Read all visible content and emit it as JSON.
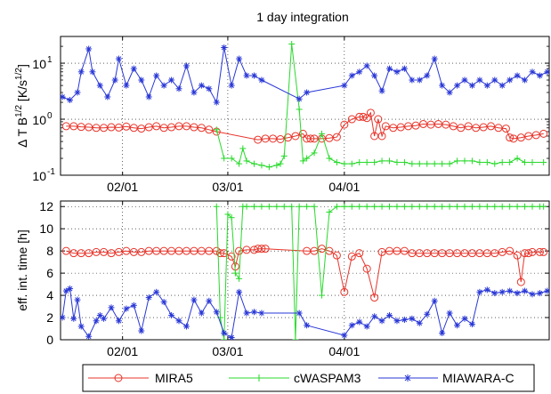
{
  "title": "1 day integration",
  "colors": {
    "mira": "#e8342a",
    "cwaspam": "#28d92b",
    "miawara": "#2937d6"
  },
  "legend": [
    "MIRA5",
    "cWASPAM3",
    "MIAWARA-C"
  ],
  "chart_data": [
    {
      "type": "line",
      "ylabel": "Δ T B^1/2 [K/s^1/2]",
      "yscale": "log",
      "ylim": [
        0.1,
        30
      ],
      "yticks": [
        "10^-1",
        "10^0",
        "10^1"
      ],
      "xticks": [
        "02/01",
        "03/01",
        "04/01"
      ],
      "xlim_days_from_jan1": [
        14.5,
        114.5
      ],
      "grid": true,
      "series": [
        {
          "name": "MIRA5",
          "x": [
            16,
            18,
            20,
            22,
            24,
            26,
            28,
            30,
            32,
            34,
            36,
            38,
            40,
            42,
            44,
            46,
            48,
            50,
            52,
            54,
            56,
            67,
            69,
            71,
            73,
            75,
            77,
            79,
            80,
            81,
            82,
            84,
            86,
            88,
            90,
            92,
            94,
            95,
            96,
            97,
            98,
            99,
            100,
            101,
            103,
            105,
            107,
            109,
            111,
            113,
            115,
            117,
            119,
            121,
            123,
            125,
            127,
            129,
            131,
            133,
            134,
            135,
            137,
            139,
            141,
            143
          ],
          "y": [
            0.75,
            0.75,
            0.73,
            0.72,
            0.7,
            0.7,
            0.72,
            0.71,
            0.74,
            0.7,
            0.68,
            0.72,
            0.75,
            0.7,
            0.72,
            0.75,
            0.75,
            0.72,
            0.7,
            0.65,
            0.6,
            0.43,
            0.45,
            0.45,
            0.44,
            0.47,
            0.5,
            0.55,
            0.45,
            0.45,
            0.45,
            0.45,
            0.46,
            0.48,
            0.8,
            1.0,
            1.1,
            1.1,
            1.05,
            1.3,
            0.5,
            1.0,
            0.5,
            0.75,
            0.7,
            0.72,
            0.75,
            0.77,
            0.82,
            0.8,
            0.82,
            0.8,
            0.75,
            0.7,
            0.75,
            0.7,
            0.72,
            0.75,
            0.7,
            0.68,
            0.47,
            0.45,
            0.47,
            0.5,
            0.52,
            0.55
          ]
        },
        {
          "name": "cWASPAM3",
          "x": [
            56,
            58,
            60,
            62,
            63,
            64,
            66,
            68,
            70,
            72,
            73,
            74,
            76,
            78,
            79,
            80,
            82,
            84,
            86,
            88,
            90,
            92,
            94,
            96,
            98,
            100,
            102,
            104,
            106,
            108,
            110,
            112,
            114,
            116,
            118,
            120,
            122,
            124,
            126,
            128,
            130,
            132,
            134,
            136,
            138,
            140,
            143
          ],
          "y": [
            0.65,
            0.2,
            0.2,
            0.16,
            0.3,
            0.18,
            0.16,
            0.15,
            0.14,
            0.15,
            0.16,
            0.22,
            22,
            1.5,
            0.18,
            0.2,
            0.25,
            0.55,
            0.2,
            0.17,
            0.16,
            0.16,
            0.17,
            0.17,
            0.17,
            0.18,
            0.18,
            0.17,
            0.17,
            0.16,
            0.16,
            0.16,
            0.16,
            0.16,
            0.16,
            0.18,
            0.18,
            0.18,
            0.17,
            0.17,
            0.16,
            0.17,
            0.17,
            0.2,
            0.17,
            0.17,
            0.17
          ]
        },
        {
          "name": "MIAWARA-C",
          "x": [
            15,
            17,
            19,
            20,
            22,
            23,
            25,
            27,
            29,
            30,
            32,
            34,
            36,
            38,
            40,
            42,
            44,
            46,
            48,
            50,
            52,
            54,
            56,
            58,
            60,
            62,
            64,
            66,
            68,
            78,
            80,
            90,
            92,
            94,
            96,
            98,
            100,
            102,
            104,
            106,
            108,
            110,
            112,
            114,
            116,
            118,
            120,
            122,
            124,
            126,
            128,
            130,
            132,
            134,
            136,
            138,
            140,
            142,
            144
          ],
          "y": [
            2.5,
            2.2,
            3,
            7,
            18,
            7,
            4,
            2.5,
            5,
            12,
            4,
            8,
            5,
            2.5,
            6,
            4,
            5,
            3.5,
            9,
            3,
            4,
            3.5,
            2,
            19,
            4,
            12,
            6,
            6,
            5,
            2.3,
            3,
            4,
            6,
            7,
            9,
            6,
            3.2,
            8,
            7,
            8,
            5,
            5,
            6,
            12,
            4,
            3,
            4,
            5,
            4,
            5,
            4,
            5,
            4,
            5,
            6,
            5,
            7,
            6,
            7
          ]
        }
      ]
    },
    {
      "type": "line",
      "ylabel": "eff. int. time [h]",
      "ylim": [
        0,
        12.5
      ],
      "yticks": [
        "0",
        "2",
        "4",
        "6",
        "8",
        "10",
        "12"
      ],
      "xticks": [
        "02/01",
        "03/01",
        "04/01"
      ],
      "xlim_days_from_jan1": [
        14.5,
        114.5
      ],
      "grid": true,
      "series": [
        {
          "name": "MIRA5",
          "x": [
            16,
            18,
            20,
            22,
            24,
            26,
            28,
            30,
            32,
            34,
            36,
            38,
            40,
            42,
            44,
            46,
            48,
            50,
            52,
            54,
            56,
            57,
            58,
            60,
            61,
            62,
            64,
            66,
            67,
            68,
            69,
            80,
            82,
            84,
            86,
            88,
            90,
            92,
            94,
            96,
            98,
            100,
            102,
            104,
            106,
            108,
            110,
            112,
            114,
            116,
            118,
            120,
            122,
            124,
            126,
            128,
            130,
            132,
            134,
            136,
            137,
            138,
            139,
            140,
            142,
            143
          ],
          "y": [
            8,
            7.8,
            7.8,
            7.8,
            7.9,
            7.9,
            7.8,
            7.9,
            8,
            7.9,
            7.9,
            8,
            8,
            8,
            8,
            8,
            8,
            8,
            8,
            8,
            8,
            7.8,
            7.8,
            7.5,
            6.6,
            8,
            8.1,
            8.1,
            8.2,
            8.2,
            8.2,
            8,
            8,
            8.2,
            8,
            7.6,
            4.3,
            7.5,
            7.8,
            6.4,
            3.8,
            7.9,
            8,
            8,
            8,
            7.8,
            7.8,
            7.8,
            7.8,
            7.8,
            7.8,
            7.8,
            7.8,
            7.8,
            7.8,
            7.8,
            7.8,
            7.9,
            8,
            7.6,
            5.2,
            7.8,
            7.8,
            7.9,
            7.9,
            7.9
          ]
        },
        {
          "name": "cWASPAM3",
          "x": [
            56,
            57,
            58,
            59,
            60,
            61,
            62,
            63,
            64,
            66,
            68,
            70,
            72,
            74,
            76,
            77,
            78,
            80,
            82,
            84,
            86,
            88,
            90,
            92,
            94,
            96,
            98,
            100,
            102,
            104,
            106,
            108,
            110,
            112,
            114,
            116,
            118,
            120,
            122,
            124,
            126,
            128,
            130,
            132,
            134,
            136,
            138,
            140,
            142,
            143
          ],
          "y": [
            12,
            2,
            0,
            11.3,
            11,
            6,
            5.5,
            12,
            12,
            12,
            12,
            12,
            12,
            12,
            12,
            0,
            12,
            12,
            12,
            4,
            11.5,
            12,
            12,
            12,
            12,
            12,
            12,
            12,
            12,
            12,
            12,
            12,
            12,
            12,
            12,
            12,
            12,
            12,
            12,
            12,
            12,
            12,
            12,
            12,
            12,
            12,
            12,
            12,
            12,
            12
          ]
        },
        {
          "name": "MIAWARA-C",
          "x": [
            15,
            16,
            17,
            18,
            19,
            20,
            22,
            24,
            25,
            26,
            28,
            30,
            32,
            34,
            36,
            38,
            40,
            42,
            44,
            46,
            48,
            50,
            52,
            54,
            56,
            58,
            60,
            62,
            64,
            66,
            68,
            78,
            80,
            90,
            92,
            94,
            96,
            98,
            100,
            102,
            104,
            106,
            108,
            110,
            112,
            114,
            116,
            118,
            120,
            122,
            124,
            126,
            128,
            130,
            132,
            134,
            136,
            138,
            140,
            142,
            144
          ],
          "y": [
            2,
            4.4,
            4.6,
            1.9,
            3.6,
            1.2,
            0.3,
            1.7,
            2.2,
            1.9,
            2.9,
            1.7,
            2.8,
            3.1,
            0.8,
            3.8,
            4.3,
            3.4,
            2.2,
            1.7,
            1.2,
            3.6,
            2.4,
            3.5,
            2.5,
            0.6,
            0.2,
            4.3,
            2.4,
            2.5,
            2.4,
            2.4,
            1.3,
            0.4,
            1.3,
            1.6,
            1.2,
            2.1,
            1.7,
            2.2,
            1.7,
            1.8,
            1.9,
            1.5,
            2.3,
            3.5,
            0.6,
            2.4,
            1.3,
            1.9,
            1.4,
            4.3,
            4.5,
            4.2,
            4.3,
            4.4,
            4.2,
            4.4,
            4.1,
            4.2,
            4.4
          ]
        }
      ]
    }
  ]
}
